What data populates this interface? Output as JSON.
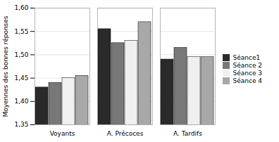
{
  "chart_data": {
    "type": "bar",
    "categories": [
      "Voyants",
      "A. Précoces",
      "A. Tardifs"
    ],
    "series": [
      {
        "name": "Séance1",
        "color": "#2a2a2a",
        "values": [
          1.43,
          1.555,
          1.49
        ]
      },
      {
        "name": "Séance 2",
        "color": "#787878",
        "values": [
          1.44,
          1.525,
          1.515
        ]
      },
      {
        "name": "Séance 3",
        "color": "#f0f0f0",
        "values": [
          1.45,
          1.53,
          1.495
        ]
      },
      {
        "name": "Séance 4",
        "color": "#a8a8a8",
        "values": [
          1.455,
          1.57,
          1.495
        ]
      }
    ],
    "ylabel": "Moyennes des bonnes réponses",
    "ylim": [
      1.35,
      1.6
    ],
    "yticks": [
      {
        "value": 1.35,
        "label": "1,35"
      },
      {
        "value": 1.4,
        "label": "1,40"
      },
      {
        "value": 1.45,
        "label": "1,45"
      },
      {
        "value": 1.5,
        "label": "1,50"
      },
      {
        "value": 1.55,
        "label": "1,55"
      },
      {
        "value": 1.6,
        "label": "1,60"
      }
    ],
    "grid": true,
    "legend": "right"
  }
}
